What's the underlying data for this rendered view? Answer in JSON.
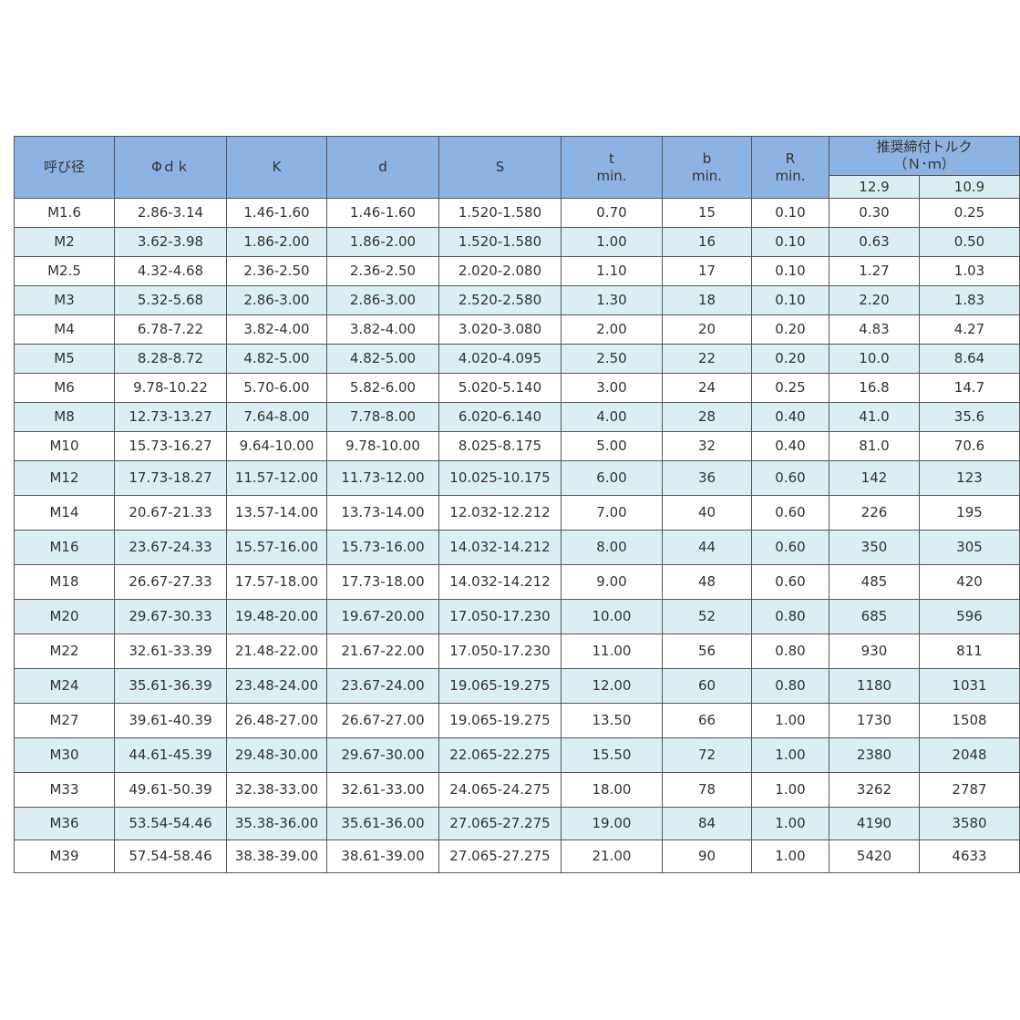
{
  "table": {
    "header": {
      "nominal": "呼び径",
      "dk": "Φｄｋ",
      "k": "K",
      "d": "d",
      "s": "S",
      "t": [
        "t",
        "min."
      ],
      "b": [
        "b",
        "min."
      ],
      "r": [
        "R",
        "min."
      ],
      "torque": [
        "推奨締付トルク",
        "（Ｎ･ｍ）"
      ],
      "torque_grades": [
        "12.9",
        "10.9"
      ]
    },
    "rows": [
      [
        "M1.6",
        "2.86-3.14",
        "1.46-1.60",
        "1.46-1.60",
        "1.520-1.580",
        "0.70",
        "15",
        "0.10",
        "0.30",
        "0.25"
      ],
      [
        "M2",
        "3.62-3.98",
        "1.86-2.00",
        "1.86-2.00",
        "1.520-1.580",
        "1.00",
        "16",
        "0.10",
        "0.63",
        "0.50"
      ],
      [
        "M2.5",
        "4.32-4.68",
        "2.36-2.50",
        "2.36-2.50",
        "2.020-2.080",
        "1.10",
        "17",
        "0.10",
        "1.27",
        "1.03"
      ],
      [
        "M3",
        "5.32-5.68",
        "2.86-3.00",
        "2.86-3.00",
        "2.520-2.580",
        "1.30",
        "18",
        "0.10",
        "2.20",
        "1.83"
      ],
      [
        "M4",
        "6.78-7.22",
        "3.82-4.00",
        "3.82-4.00",
        "3.020-3.080",
        "2.00",
        "20",
        "0.20",
        "4.83",
        "4.27"
      ],
      [
        "M5",
        "8.28-8.72",
        "4.82-5.00",
        "4.82-5.00",
        "4.020-4.095",
        "2.50",
        "22",
        "0.20",
        "10.0",
        "8.64"
      ],
      [
        "M6",
        "9.78-10.22",
        "5.70-6.00",
        "5.82-6.00",
        "5.020-5.140",
        "3.00",
        "24",
        "0.25",
        "16.8",
        "14.7"
      ],
      [
        "M8",
        "12.73-13.27",
        "7.64-8.00",
        "7.78-8.00",
        "6.020-6.140",
        "4.00",
        "28",
        "0.40",
        "41.0",
        "35.6"
      ],
      [
        "M10",
        "15.73-16.27",
        "9.64-10.00",
        "9.78-10.00",
        "8.025-8.175",
        "5.00",
        "32",
        "0.40",
        "81.0",
        "70.6"
      ],
      [
        "M12",
        "17.73-18.27",
        "11.57-12.00",
        "11.73-12.00",
        "10.025-10.175",
        "6.00",
        "36",
        "0.60",
        "142",
        "123"
      ],
      [
        "M14",
        "20.67-21.33",
        "13.57-14.00",
        "13.73-14.00",
        "12.032-12.212",
        "7.00",
        "40",
        "0.60",
        "226",
        "195"
      ],
      [
        "M16",
        "23.67-24.33",
        "15.57-16.00",
        "15.73-16.00",
        "14.032-14.212",
        "8.00",
        "44",
        "0.60",
        "350",
        "305"
      ],
      [
        "M18",
        "26.67-27.33",
        "17.57-18.00",
        "17.73-18.00",
        "14.032-14.212",
        "9.00",
        "48",
        "0.60",
        "485",
        "420"
      ],
      [
        "M20",
        "29.67-30.33",
        "19.48-20.00",
        "19.67-20.00",
        "17.050-17.230",
        "10.00",
        "52",
        "0.80",
        "685",
        "596"
      ],
      [
        "M22",
        "32.61-33.39",
        "21.48-22.00",
        "21.67-22.00",
        "17.050-17.230",
        "11.00",
        "56",
        "0.80",
        "930",
        "811"
      ],
      [
        "M24",
        "35.61-36.39",
        "23.48-24.00",
        "23.67-24.00",
        "19.065-19.275",
        "12.00",
        "60",
        "0.80",
        "1180",
        "1031"
      ],
      [
        "M27",
        "39.61-40.39",
        "26.48-27.00",
        "26.67-27.00",
        "19.065-19.275",
        "13.50",
        "66",
        "1.00",
        "1730",
        "1508"
      ],
      [
        "M30",
        "44.61-45.39",
        "29.48-30.00",
        "29.67-30.00",
        "22.065-22.275",
        "15.50",
        "72",
        "1.00",
        "2380",
        "2048"
      ],
      [
        "M33",
        "49.61-50.39",
        "32.38-33.00",
        "32.61-33.00",
        "24.065-24.275",
        "18.00",
        "78",
        "1.00",
        "3262",
        "2787"
      ],
      [
        "M36",
        "53.54-54.46",
        "35.38-36.00",
        "35.61-36.00",
        "27.065-27.275",
        "19.00",
        "84",
        "1.00",
        "4190",
        "3580"
      ],
      [
        "M39",
        "57.54-58.46",
        "38.38-39.00",
        "38.61-39.00",
        "27.065-27.275",
        "21.00",
        "90",
        "1.00",
        "5420",
        "4633"
      ]
    ]
  }
}
